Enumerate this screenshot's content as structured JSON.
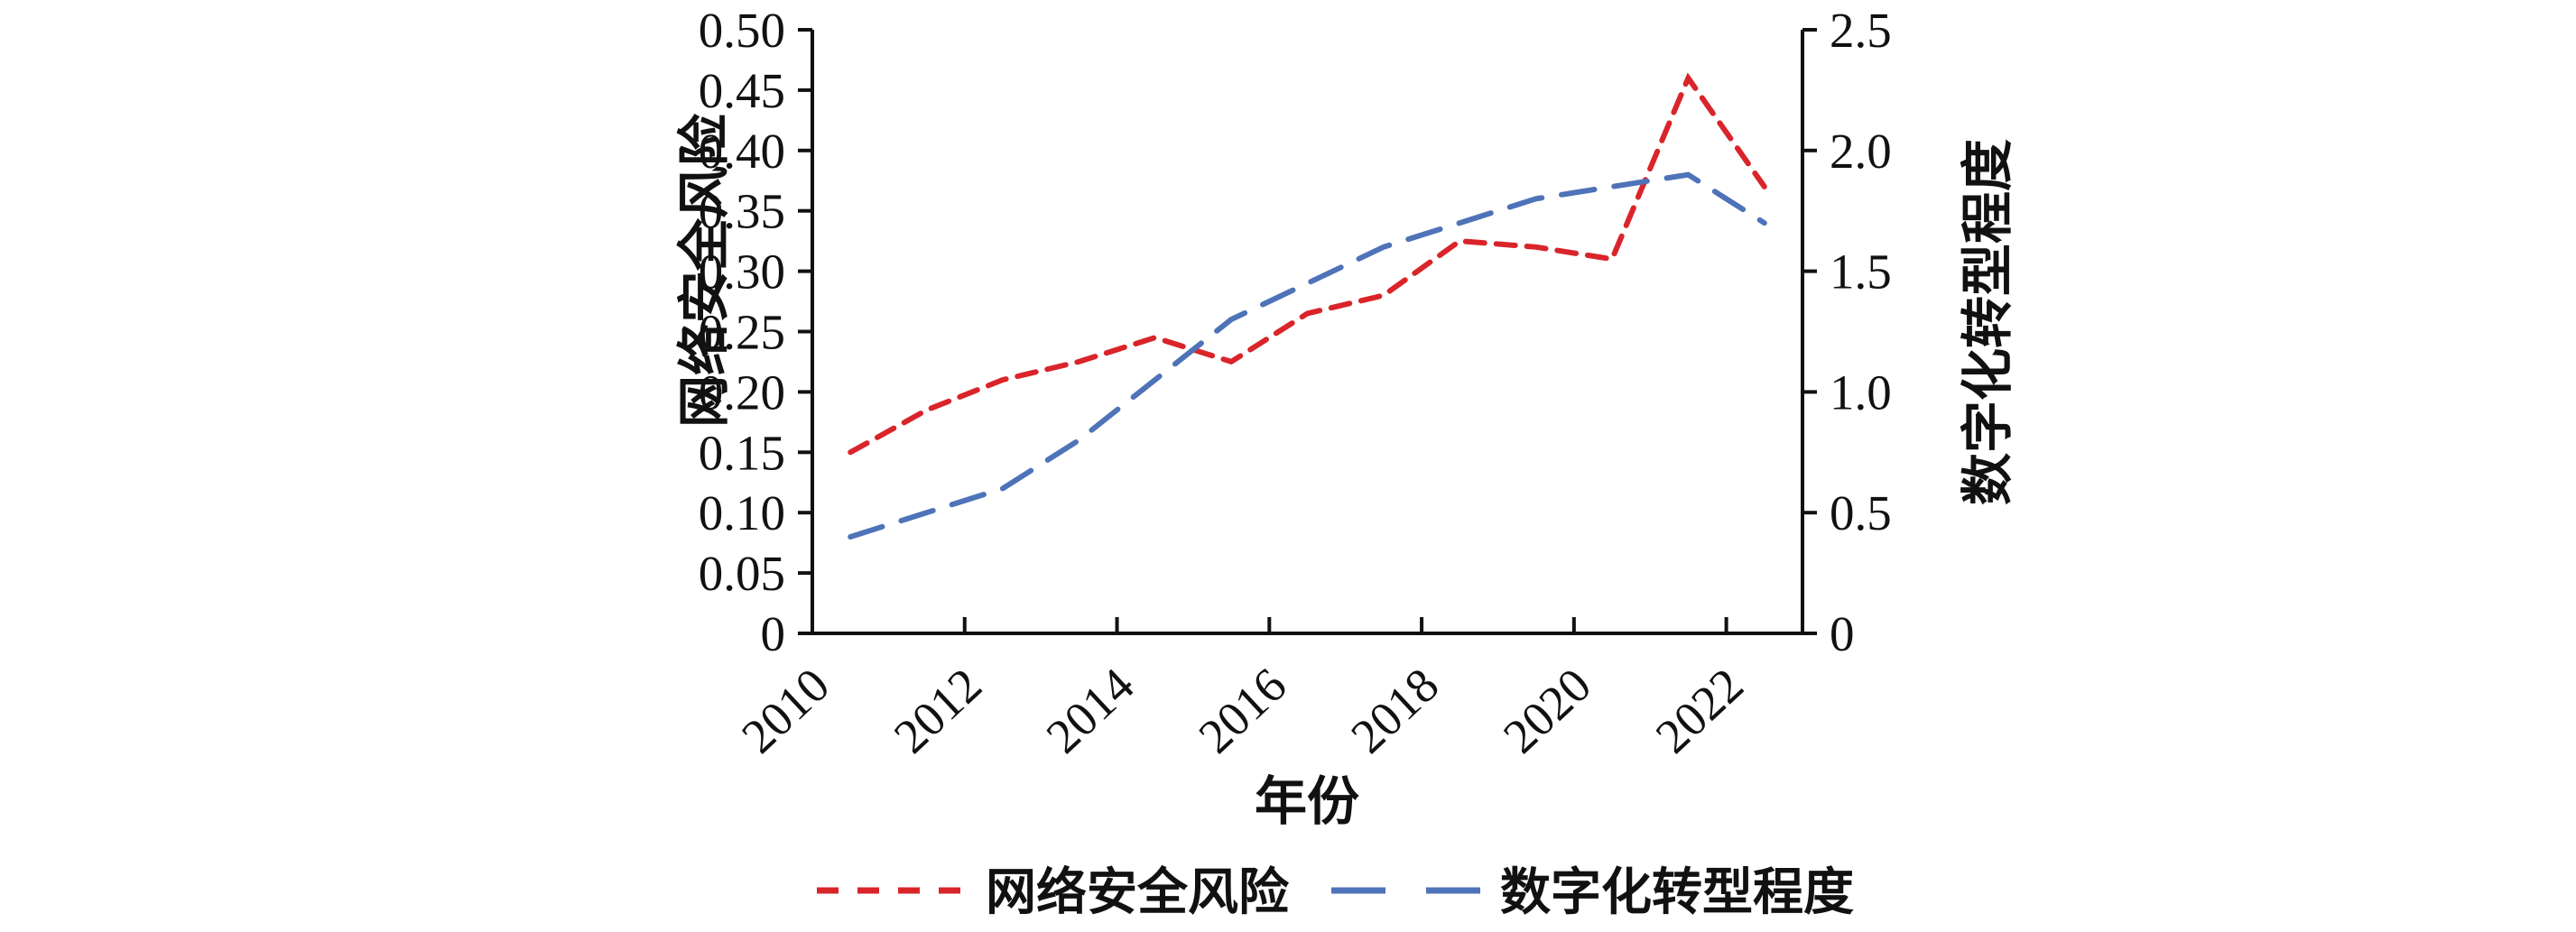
{
  "figure": {
    "background_color": "#ffffff",
    "axis_color": "#111111"
  },
  "chart_data": {
    "type": "line",
    "title": "",
    "xlabel": "年份",
    "x": [
      2010,
      2011,
      2012,
      2013,
      2014,
      2015,
      2016,
      2017,
      2018,
      2019,
      2020,
      2021,
      2022
    ],
    "x_tick_labels": [
      "2010",
      "2012",
      "2014",
      "2016",
      "2018",
      "2020",
      "2022"
    ],
    "grid": false,
    "left_axis": {
      "label": "网络安全风险",
      "min": 0,
      "max": 0.5,
      "tick_step": 0.05,
      "tick_labels": [
        "0",
        "0.05",
        "0.10",
        "0.15",
        "0.20",
        "0.25",
        "0.30",
        "0.35",
        "0.40",
        "0.45",
        "0.50"
      ]
    },
    "right_axis": {
      "label": "数字化转型程度",
      "min": 0,
      "max": 2.5,
      "tick_step": 0.5,
      "tick_labels": [
        "0",
        "0.5",
        "1.0",
        "1.5",
        "2.0",
        "2.5"
      ]
    },
    "series": [
      {
        "name": "网络安全风险",
        "axis": "left",
        "color": "#d9252a",
        "dash_style": "short-dash",
        "values": [
          0.15,
          0.185,
          0.21,
          0.225,
          0.245,
          0.225,
          0.265,
          0.28,
          0.325,
          0.32,
          0.31,
          0.46,
          0.37
        ]
      },
      {
        "name": "数字化转型程度",
        "axis": "right",
        "color": "#4e73b8",
        "dash_style": "long-dash",
        "values": [
          0.4,
          0.5,
          0.6,
          0.8,
          1.05,
          1.3,
          1.45,
          1.6,
          1.7,
          1.8,
          1.85,
          1.9,
          1.7
        ]
      }
    ],
    "legend": {
      "position": "bottom-center",
      "entries": [
        "网络安全风险",
        "数字化转型程度"
      ]
    }
  }
}
